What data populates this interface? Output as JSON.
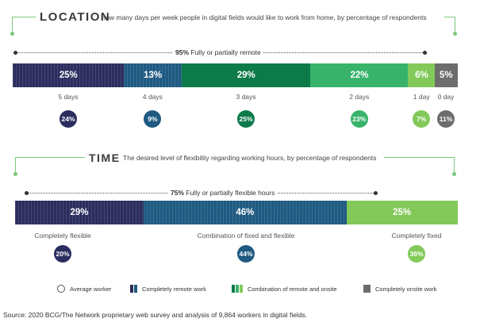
{
  "chart_data": [
    {
      "type": "bar",
      "title": "LOCATION",
      "subtitle": "How many days per week people in digital fields would like to work from home, by percentage of respondents",
      "annotation": {
        "value": "95%",
        "text": "Fully or partially remote"
      },
      "categories": [
        "5 days",
        "4 days",
        "3 days",
        "2 days",
        "1 day",
        "0 day"
      ],
      "segments": [
        {
          "category": "5 days",
          "value": 25,
          "label": "25%",
          "color": "#2b2d5e",
          "average": 24,
          "average_label": "24%"
        },
        {
          "category": "4 days",
          "value": 13,
          "label": "13%",
          "color": "#1f5a82",
          "average": 9,
          "average_label": "9%"
        },
        {
          "category": "3 days",
          "value": 29,
          "label": "29%",
          "color": "#0d7a4a",
          "average": 25,
          "average_label": "25%"
        },
        {
          "category": "2 days",
          "value": 22,
          "label": "22%",
          "color": "#37b36a",
          "average": 23,
          "average_label": "23%"
        },
        {
          "category": "1 day",
          "value": 6,
          "label": "6%",
          "color": "#82c95a",
          "average": 7,
          "average_label": "7%"
        },
        {
          "category": "0 day",
          "value": 5,
          "label": "5%",
          "color": "#6d6d6d",
          "average": 11,
          "average_label": "11%"
        }
      ]
    },
    {
      "type": "bar",
      "title": "TIME",
      "subtitle": "The desired level of flexibility regarding working hours, by percentage of respondents",
      "annotation": {
        "value": "75%",
        "text": "Fully or partially flexible hours"
      },
      "categories": [
        "Completely flexible",
        "Combination of fixed and flexible",
        "Completely fixed"
      ],
      "segments": [
        {
          "category": "Completely flexible",
          "value": 29,
          "label": "29%",
          "color": "#2b2d5e",
          "average": 20,
          "average_label": "20%"
        },
        {
          "category": "Combination of fixed and flexible",
          "value": 46,
          "label": "46%",
          "color": "#1f5a82",
          "average": 44,
          "average_label": "44%"
        },
        {
          "category": "Completely fixed",
          "value": 25,
          "label": "25%",
          "color": "#82c95a",
          "average": 36,
          "average_label": "36%"
        }
      ]
    }
  ],
  "legend": [
    {
      "label": "Average worker",
      "kind": "circle"
    },
    {
      "label": "Completely remote work",
      "kind": "remote",
      "colors": [
        "#2b2d5e",
        "#1f5a82"
      ]
    },
    {
      "label": "Combination of remote and onsite",
      "kind": "combo",
      "colors": [
        "#0d7a4a",
        "#37b36a",
        "#82c95a"
      ]
    },
    {
      "label": "Completely onsite work",
      "kind": "onsite",
      "colors": [
        "#6d6d6d"
      ]
    }
  ],
  "source": "Source: 2020 BCG/The Network proprietary web survey and analysis of 9,864 workers in digital fields."
}
